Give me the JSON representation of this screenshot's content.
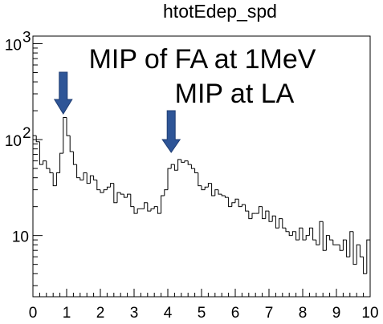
{
  "chart_data": {
    "type": "histogram",
    "title": "htotEdep_spd",
    "xlabel": "",
    "ylabel": "",
    "xlim": [
      0,
      10
    ],
    "ylim": [
      2.3,
      1200
    ],
    "yscale": "log",
    "grid": false,
    "x_ticks": [
      "0",
      "1",
      "2",
      "3",
      "4",
      "5",
      "6",
      "7",
      "8",
      "9",
      "10"
    ],
    "y_ticks": [
      {
        "value": 10,
        "base": "10",
        "exp": ""
      },
      {
        "value": 100,
        "base": "10",
        "exp": "2"
      },
      {
        "value": 1000,
        "base": "10",
        "exp": "3"
      }
    ],
    "bin_width": 0.1,
    "values": [
      110,
      95,
      55,
      60,
      50,
      45,
      33,
      45,
      72,
      170,
      110,
      75,
      55,
      40,
      38,
      45,
      35,
      42,
      38,
      30,
      28,
      30,
      32,
      35,
      22,
      28,
      27,
      25,
      27,
      20,
      17,
      19,
      19,
      22,
      18,
      19,
      20,
      17,
      26,
      30,
      50,
      55,
      48,
      62,
      58,
      60,
      55,
      50,
      45,
      33,
      30,
      32,
      35,
      26,
      30,
      27,
      26,
      25,
      20,
      22,
      24,
      20,
      21,
      18,
      15,
      17,
      17,
      20,
      15,
      18,
      14,
      16,
      12,
      15,
      12,
      11,
      10,
      11,
      9,
      12,
      9,
      10,
      12,
      9,
      8,
      14,
      7,
      10,
      9,
      8,
      8,
      7,
      9,
      6,
      11,
      5,
      8,
      6,
      4,
      9
    ],
    "annotations": [
      {
        "text": "MIP of FA at 1MeV",
        "arrow_to_x": 0.9
      },
      {
        "text": "MIP at LA",
        "arrow_to_x": 4.1
      }
    ],
    "arrow_color": "#2e5597",
    "line_color": "#000000"
  }
}
